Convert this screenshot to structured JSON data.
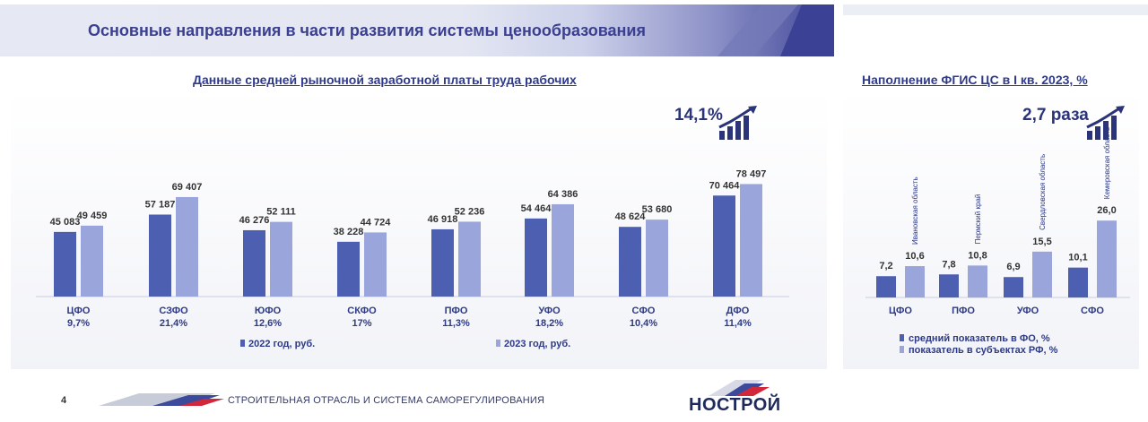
{
  "title": "Основные направления в части развития системы ценообразования",
  "left_chart": {
    "subtitle": "Данные средней рыночной заработной платы труда рабочих",
    "growth": "14,1%",
    "legend": [
      "2022 год, руб.",
      "2023 год, руб."
    ]
  },
  "right_chart": {
    "subtitle": "Наполнение ФГИС ЦС в I кв. 2023, %",
    "growth": "2,7 раза",
    "legend": [
      "средний показатель в ФО, %",
      "показатель в субъектах РФ, %"
    ]
  },
  "footer": {
    "page_number": "4",
    "text": "СТРОИТЕЛЬНАЯ ОТРАСЛЬ И СИСТЕМА САМОРЕГУЛИРОВАНИЯ",
    "logo": "НОСТРОЙ"
  },
  "colors": {
    "dark_bar": "#4c5fb0",
    "light_bar": "#9aa6db",
    "title": "#3a3f8f"
  },
  "chart_data": [
    {
      "type": "bar",
      "title": "Данные средней рыночной заработной платы труда рабочих",
      "categories": [
        "ЦФО",
        "СЗФО",
        "ЮФО",
        "СКФО",
        "ПФО",
        "УФО",
        "СФО",
        "ДФО"
      ],
      "sublabels": [
        "9,7%",
        "21,4%",
        "12,6%",
        "17%",
        "11,3%",
        "18,2%",
        "10,4%",
        "11,4%"
      ],
      "series": [
        {
          "name": "2022 год, руб.",
          "values": [
            45083,
            57187,
            46276,
            38228,
            46918,
            54464,
            48624,
            70464
          ],
          "labels": [
            "45 083",
            "57 187",
            "46 276",
            "38 228",
            "46 918",
            "54 464",
            "48 624",
            "70 464"
          ]
        },
        {
          "name": "2023 год, руб.",
          "values": [
            49459,
            69407,
            52111,
            44724,
            52236,
            64386,
            53680,
            78497
          ],
          "labels": [
            "49 459",
            "69 407",
            "52 111",
            "44 724",
            "52 236",
            "64 386",
            "53 680",
            "78 497"
          ]
        }
      ],
      "annotation": "14,1%",
      "grid": false
    },
    {
      "type": "bar",
      "title": "Наполнение ФГИС ЦС в I кв. 2023, %",
      "categories": [
        "ЦФО",
        "ПФО",
        "УФО",
        "СФО"
      ],
      "subject_labels": [
        "Ивановская область",
        "Пермский край",
        "Свердловская область",
        "Кемеровская область"
      ],
      "series": [
        {
          "name": "средний показатель в ФО, %",
          "values": [
            7.2,
            7.8,
            6.9,
            10.1
          ],
          "labels": [
            "7,2",
            "7,8",
            "6,9",
            "10,1"
          ]
        },
        {
          "name": "показатель в субъектах РФ, %",
          "values": [
            10.6,
            10.8,
            15.5,
            26.0
          ],
          "labels": [
            "10,6",
            "10,8",
            "15,5",
            "26,0"
          ]
        }
      ],
      "annotation": "2,7 раза",
      "grid": false
    }
  ]
}
